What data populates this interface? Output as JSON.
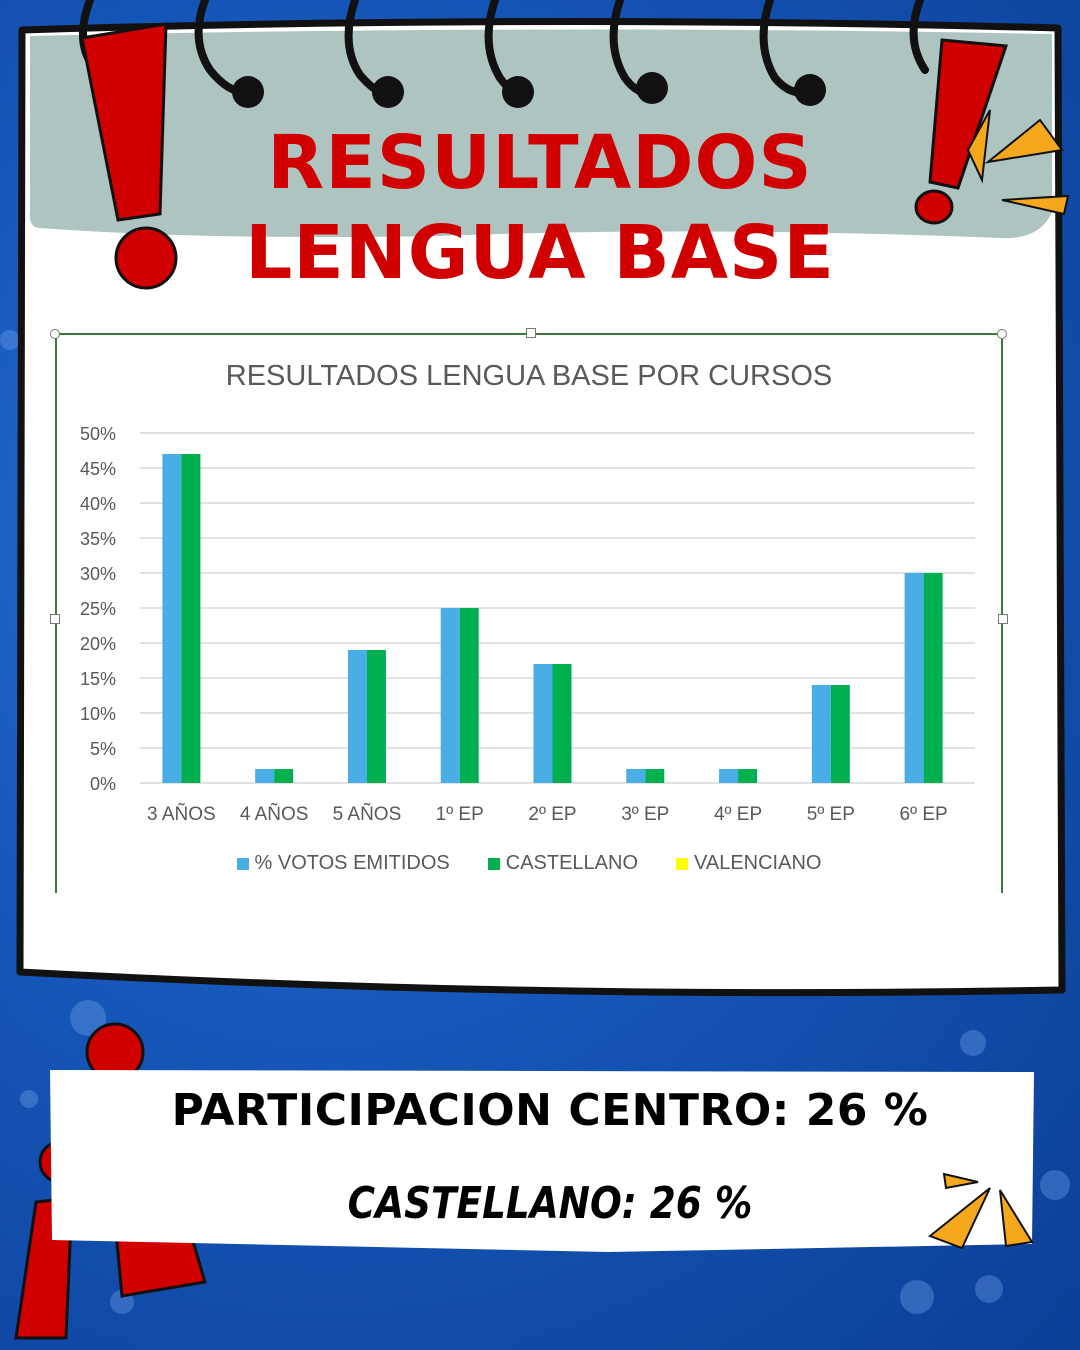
{
  "title_lines": [
    "RESULTADOS",
    "LENGUA BASE"
  ],
  "chart_data": {
    "type": "bar",
    "title": "RESULTADOS LENGUA BASE POR CURSOS",
    "categories": [
      "3 AÑOS",
      "4 AÑOS",
      "5 AÑOS",
      "1º EP",
      "2º EP",
      "3º EP",
      "4º EP",
      "5º EP",
      "6º EP"
    ],
    "series": [
      {
        "name": "% VOTOS EMITIDOS",
        "color": "#4aaee6",
        "values": [
          47,
          2,
          19,
          25,
          17,
          2,
          2,
          14,
          30
        ]
      },
      {
        "name": "CASTELLANO",
        "color": "#00b050",
        "values": [
          47,
          2,
          19,
          25,
          17,
          2,
          2,
          14,
          30
        ]
      },
      {
        "name": "VALENCIANO",
        "color": "#ffff00",
        "values": [
          0,
          0,
          0,
          0,
          0,
          0,
          0,
          0,
          0
        ]
      }
    ],
    "ylim": [
      0,
      50
    ],
    "yticks": [
      "0%",
      "5%",
      "10%",
      "15%",
      "20%",
      "25%",
      "30%",
      "35%",
      "40%",
      "45%",
      "50%"
    ],
    "grid": true,
    "legend": "bottom"
  },
  "summary": {
    "participacion": "PARTICIPACION CENTRO: 26 %",
    "castellano": "CASTELLANO: 26 %"
  },
  "colors": {
    "accent_red": "#d00000",
    "accent_orange": "#f6a81c",
    "background_blue": "#1556b8"
  }
}
